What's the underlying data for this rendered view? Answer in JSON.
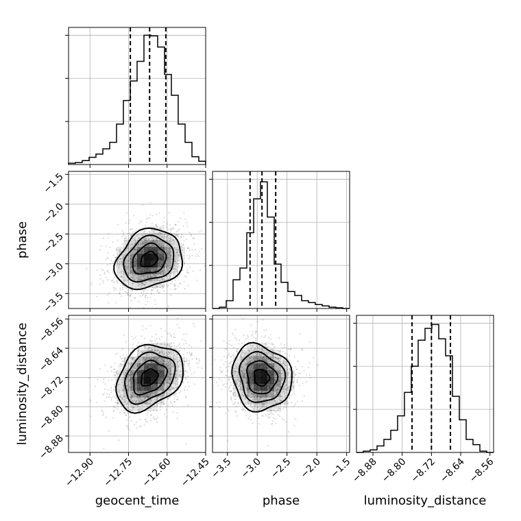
{
  "chart_data": {
    "type": "corner",
    "parameters": [
      {
        "name": "geocent_time",
        "label": "geocent_time",
        "range": [
          -12.9833,
          -12.45
        ],
        "ticks": [
          -12.9,
          -12.75,
          -12.6,
          -12.45
        ],
        "tick_labels": [
          "−12.90",
          "−12.75",
          "−12.60",
          "−12.45"
        ],
        "quantiles": [
          -12.743,
          -12.668,
          -12.605
        ],
        "histogram": {
          "bin_edges": [
            -12.9833,
            -12.9567,
            -12.93,
            -12.9033,
            -12.8767,
            -12.85,
            -12.8233,
            -12.7967,
            -12.77,
            -12.7433,
            -12.7167,
            -12.69,
            -12.6633,
            -12.6367,
            -12.61,
            -12.5833,
            -12.5567,
            -12.53,
            -12.5033,
            -12.4767,
            -12.45
          ],
          "density": [
            0.01,
            0.015,
            0.03,
            0.055,
            0.08,
            0.12,
            0.17,
            0.31,
            0.49,
            0.64,
            0.79,
            0.99,
            0.985,
            0.9,
            0.69,
            0.53,
            0.31,
            0.17,
            0.06,
            0.025
          ]
        }
      },
      {
        "name": "phase",
        "label": "phase",
        "range": [
          -3.75,
          -1.45
        ],
        "ticks": [
          -3.5,
          -3.0,
          -2.5,
          -2.0,
          -1.5
        ],
        "tick_labels": [
          "−3.5",
          "−3.0",
          "−2.5",
          "−2.0",
          "−1.5"
        ],
        "quantiles": [
          -3.12,
          -2.92,
          -2.69
        ],
        "histogram": {
          "bin_edges": [
            -3.75,
            -3.635,
            -3.52,
            -3.405,
            -3.29,
            -3.175,
            -3.06,
            -2.945,
            -2.83,
            -2.715,
            -2.6,
            -2.485,
            -2.37,
            -2.255,
            -2.14,
            -2.025,
            -1.91,
            -1.795,
            -1.68,
            -1.565,
            -1.45
          ],
          "density": [
            0.0,
            0.01,
            0.06,
            0.22,
            0.31,
            0.58,
            0.84,
            0.97,
            0.7,
            0.34,
            0.2,
            0.13,
            0.1,
            0.06,
            0.045,
            0.03,
            0.02,
            0.01,
            0.005,
            0.0
          ]
        }
      },
      {
        "name": "luminosity_distance",
        "label": "luminosity_distance",
        "range": [
          -8.925,
          -8.55
        ],
        "ticks": [
          -8.88,
          -8.8,
          -8.72,
          -8.64,
          -8.56
        ],
        "tick_labels": [
          "−8.88",
          "−8.80",
          "−8.72",
          "−8.64",
          "−8.56"
        ],
        "quantiles": [
          -8.773,
          -8.72,
          -8.668
        ],
        "histogram": {
          "bin_edges": [
            -8.925,
            -8.90625,
            -8.8875,
            -8.86875,
            -8.85,
            -8.83125,
            -8.8125,
            -8.79375,
            -8.775,
            -8.75625,
            -8.7375,
            -8.71875,
            -8.7,
            -8.68125,
            -8.6625,
            -8.64375,
            -8.625,
            -8.60625,
            -8.5875,
            -8.56875,
            -8.55
          ],
          "density": [
            0.0,
            0.01,
            0.02,
            0.05,
            0.1,
            0.17,
            0.28,
            0.46,
            0.66,
            0.86,
            0.95,
            0.98,
            0.87,
            0.74,
            0.43,
            0.25,
            0.1,
            0.06,
            0.01,
            0.0
          ]
        }
      }
    ],
    "pairs": [
      {
        "x": "geocent_time",
        "y": "phase",
        "mean": [
          -12.67,
          -2.93
        ],
        "spread": [
          0.065,
          0.25
        ],
        "correlation": 0.2
      },
      {
        "x": "geocent_time",
        "y": "luminosity_distance",
        "mean": [
          -12.67,
          -8.72
        ],
        "spread": [
          0.065,
          0.045
        ],
        "correlation": 0.3
      },
      {
        "x": "phase",
        "y": "luminosity_distance",
        "mean": [
          -2.93,
          -8.72
        ],
        "spread": [
          0.25,
          0.045
        ],
        "correlation": -0.1
      }
    ]
  }
}
